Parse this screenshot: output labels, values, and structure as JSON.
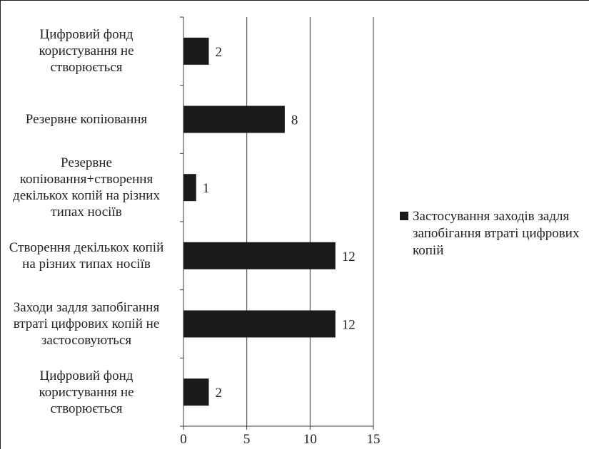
{
  "chart_data": {
    "type": "bar",
    "orientation": "horizontal",
    "categories": [
      "Цифровий фонд\nкористування не\nстворюється",
      "Резервне копіювання",
      "Резервне\nкопіювання+створення\nдекількох копій на різних\nтипах носіїв",
      "Створення декількох копій\nна різних типах носіїв",
      "Заходи задля запобігання\nвтраті цифрових копій не\nзастосовуються",
      "Цифровий фонд\nкористування не\nстворюється"
    ],
    "series": [
      {
        "name": "Застосування заходів задля запобігання втраті цифрових копій",
        "values": [
          2,
          8,
          1,
          12,
          12,
          2
        ],
        "color": "#1a1a1a"
      }
    ],
    "xlim": [
      0,
      15
    ],
    "xticks": [
      "0",
      "5",
      "10",
      "15"
    ],
    "data_labels": [
      "2",
      "8",
      "1",
      "12",
      "12",
      "2"
    ],
    "grid": "vertical major gridlines",
    "legend_position": "right"
  }
}
